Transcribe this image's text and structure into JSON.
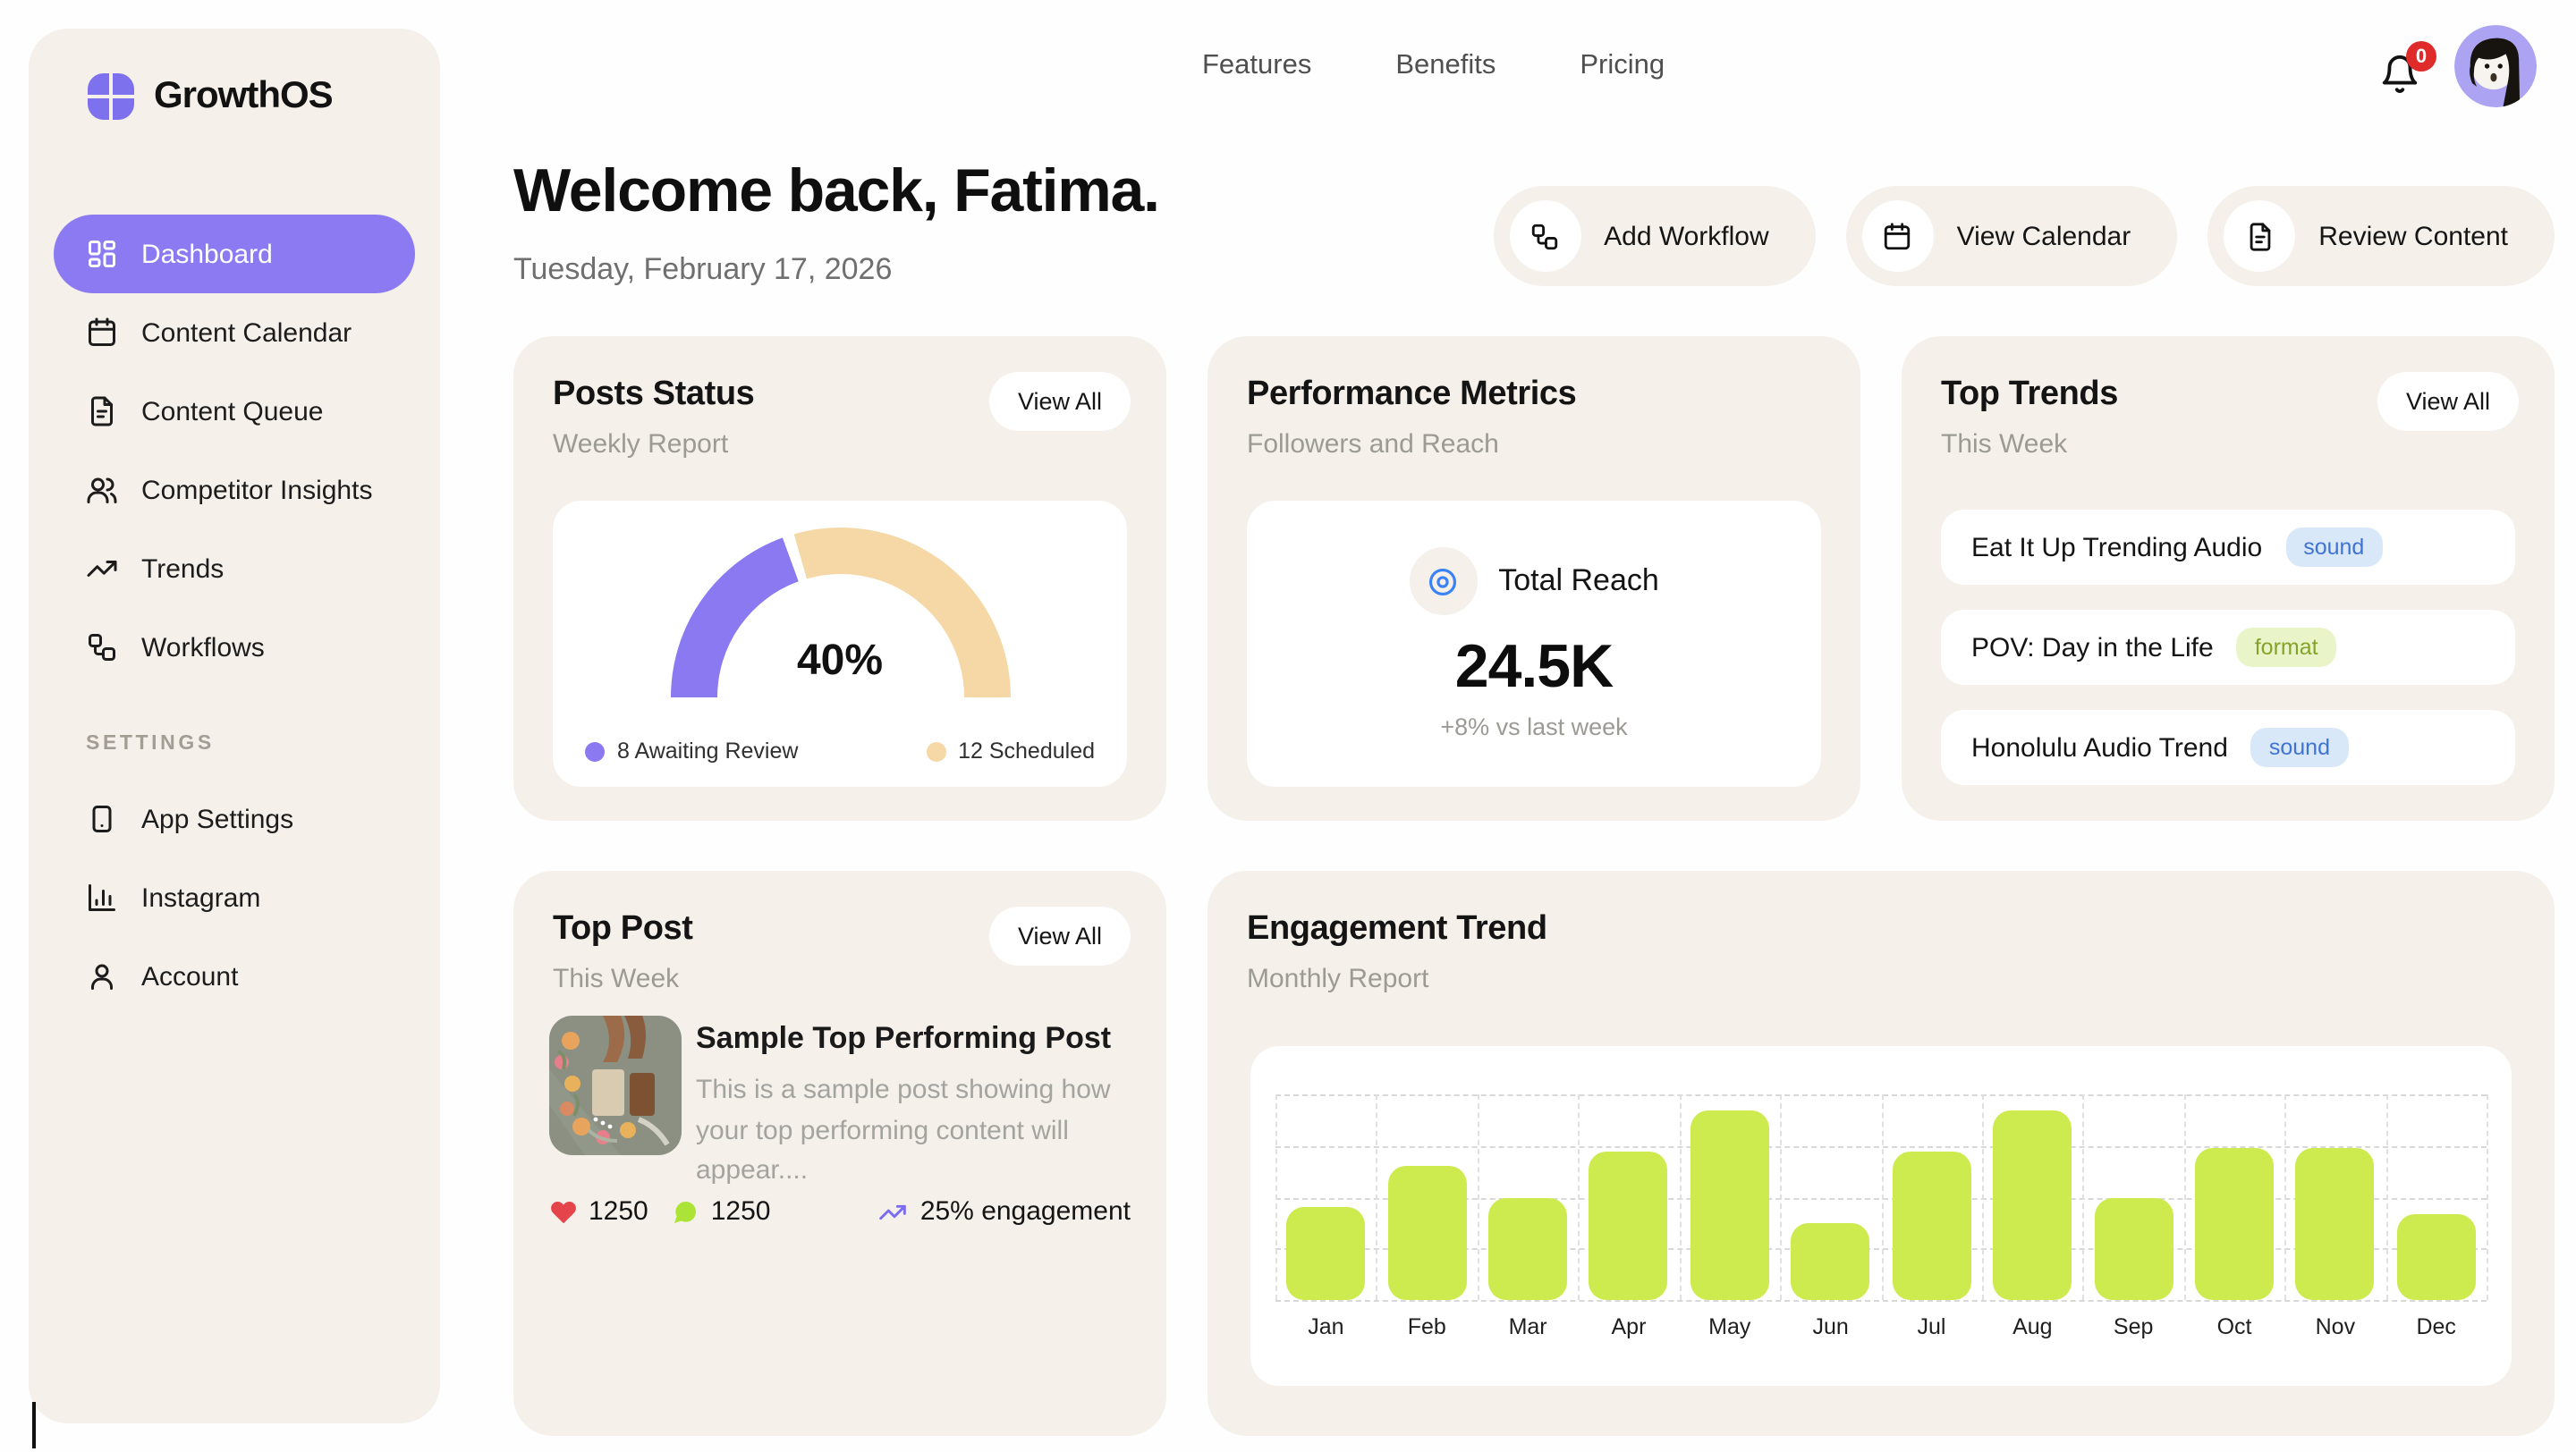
{
  "brand": {
    "name": "GrowthOS",
    "accent": "#8b7af2"
  },
  "sidebar": {
    "items": [
      {
        "label": "Dashboard",
        "active": true
      },
      {
        "label": "Content Calendar"
      },
      {
        "label": "Content Queue"
      },
      {
        "label": "Competitor Insights"
      },
      {
        "label": "Trends"
      },
      {
        "label": "Workflows"
      }
    ],
    "section_label": "SETTINGS",
    "settings_items": [
      {
        "label": "App Settings"
      },
      {
        "label": "Instagram"
      },
      {
        "label": "Account"
      }
    ]
  },
  "topnav": {
    "links": [
      "Features",
      "Benefits",
      "Pricing"
    ],
    "notification_count": "0"
  },
  "header": {
    "greeting": "Welcome back, Fatima.",
    "date": "Tuesday, February 17, 2026"
  },
  "actions": [
    {
      "label": "Add Workflow"
    },
    {
      "label": "View Calendar"
    },
    {
      "label": "Review Content"
    }
  ],
  "cards": {
    "posts_status": {
      "title": "Posts Status",
      "subtitle": "Weekly Report",
      "view_all": "View All",
      "gauge": {
        "percent": 40,
        "label": "40%",
        "segments": [
          {
            "label": "8 Awaiting Review",
            "color": "#8a79f0"
          },
          {
            "label": "12 Scheduled",
            "color": "#f6d8a6"
          }
        ]
      }
    },
    "performance": {
      "title": "Performance Metrics",
      "subtitle": "Followers and Reach",
      "metric_label": "Total Reach",
      "value": "24.5K",
      "delta": "+8% vs last week",
      "icon_color": "#3b82f6"
    },
    "top_trends": {
      "title": "Top Trends",
      "subtitle": "This Week",
      "view_all": "View All",
      "items": [
        {
          "name": "Eat It Up Trending Audio",
          "tag": "sound"
        },
        {
          "name": "POV: Day in the Life",
          "tag": "format"
        },
        {
          "name": "Honolulu Audio Trend",
          "tag": "sound"
        }
      ]
    },
    "top_post": {
      "title": "Top Post",
      "subtitle": "This Week",
      "view_all": "View All",
      "post": {
        "title": "Sample Top Performing Post",
        "description": "This is a sample post showing how your top performing content will appear....",
        "likes": "1250",
        "comments": "1250",
        "engagement": "25% engagement"
      }
    },
    "engagement": {
      "title": "Engagement Trend",
      "subtitle": "Monthly Report"
    }
  },
  "chart_data": {
    "type": "bar",
    "title": "Engagement Trend",
    "categories": [
      "Jan",
      "Feb",
      "Mar",
      "Apr",
      "May",
      "Jun",
      "Jul",
      "Aug",
      "Sep",
      "Oct",
      "Nov",
      "Dec"
    ],
    "values": [
      45,
      65,
      50,
      72,
      92,
      37,
      72,
      92,
      50,
      74,
      74,
      42
    ],
    "ylim": [
      0,
      100
    ],
    "grid": true,
    "bar_color": "#cdeb4f",
    "xlabel": "",
    "ylabel": ""
  }
}
